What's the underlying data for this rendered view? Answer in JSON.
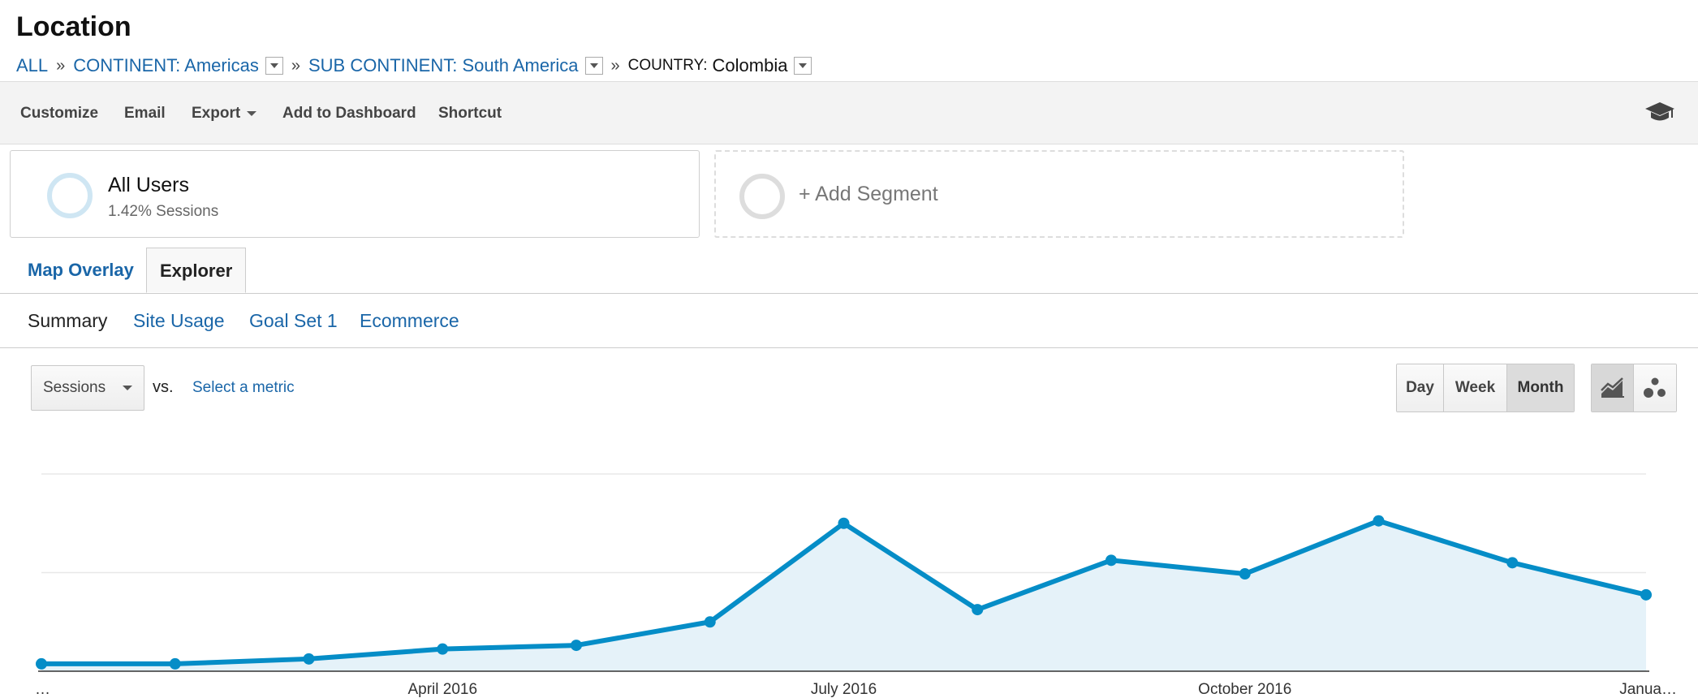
{
  "page": {
    "title": "Location"
  },
  "breadcrumb": {
    "all": "ALL",
    "continent": "CONTINENT: Americas",
    "subcontinent": "SUB CONTINENT: South America",
    "country_key": "COUNTRY:",
    "country_value": "Colombia",
    "separator": "»"
  },
  "toolbar": {
    "customize": "Customize",
    "email": "Email",
    "export": "Export",
    "add_to_dashboard": "Add to Dashboard",
    "shortcut": "Shortcut",
    "academy_icon": "graduation-cap-icon"
  },
  "segments": {
    "all_users": {
      "name": "All Users",
      "sub": "1.42% Sessions",
      "ring_color": "#cfe6f3"
    },
    "add_segment": {
      "label": "+ Add Segment",
      "ring_color": "#dddddd"
    }
  },
  "view_tabs": {
    "map_overlay": "Map Overlay",
    "explorer": "Explorer"
  },
  "sub_tabs": {
    "summary": "Summary",
    "site_usage": "Site Usage",
    "goal_set_1": "Goal Set 1",
    "ecommerce": "Ecommerce"
  },
  "metric": {
    "selected": "Sessions",
    "vs": "vs.",
    "select_metric": "Select a metric"
  },
  "period": {
    "day": "Day",
    "week": "Week",
    "month": "Month",
    "active": "Month"
  },
  "chart_type": {
    "line_icon": "line-chart-icon",
    "motion_icon": "motion-chart-icon",
    "active": "line"
  },
  "chart_data": {
    "type": "area",
    "series": [
      {
        "values": [
          3,
          3,
          5,
          9,
          10.5,
          20,
          60,
          25,
          45,
          39.5,
          61,
          44,
          31
        ]
      }
    ],
    "x_tick_labels": [
      "…",
      "April 2016",
      "July 2016",
      "October 2016",
      "Janua…"
    ],
    "ylim": [
      0,
      80
    ],
    "grid": true,
    "color": "#058dc7",
    "fill_color": "#e5f2f9"
  }
}
